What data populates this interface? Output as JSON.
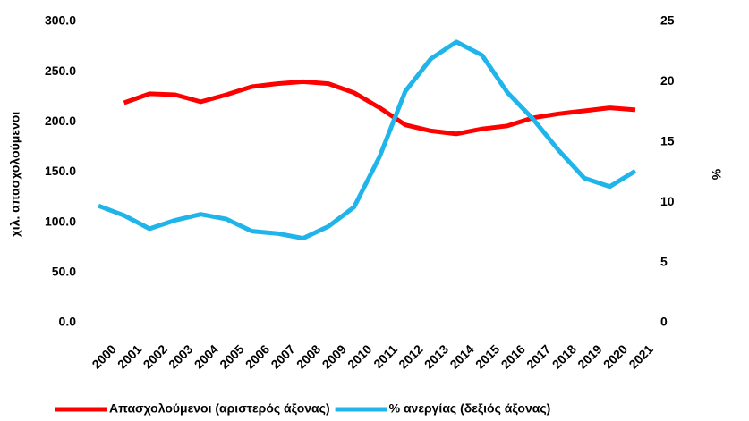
{
  "chart_data": {
    "type": "line",
    "categories": [
      "2000",
      "2001",
      "2002",
      "2003",
      "2004",
      "2005",
      "2006",
      "2007",
      "2008",
      "2009",
      "2010",
      "2011",
      "2012",
      "2013",
      "2014",
      "2015",
      "2016",
      "2017",
      "2018",
      "2019",
      "2020",
      "2021"
    ],
    "series": [
      {
        "name": "Απασχολούμενοι (αριστερός άξονας)",
        "color": "#ff0000",
        "axis": "y",
        "values": [
          null,
          219,
          228,
          227,
          220,
          227,
          235,
          238,
          240,
          238,
          229,
          214,
          197,
          191,
          188,
          193,
          196,
          204,
          208,
          211,
          214,
          212
        ]
      },
      {
        "name": "% ανεργίας (δεξιός άξονας)",
        "color": "#1fb4ea",
        "axis": "y2",
        "values": [
          9.7,
          8.9,
          7.8,
          8.5,
          9.0,
          8.6,
          7.6,
          7.4,
          7.0,
          8.0,
          9.6,
          13.8,
          19.2,
          21.9,
          23.3,
          22.2,
          19.1,
          16.9,
          14.3,
          12.0,
          11.3,
          12.6
        ]
      }
    ],
    "ylabel": "χιλ. απασχολούμενοι",
    "y2label": "%",
    "ylim": [
      0,
      300
    ],
    "yticks": [
      {
        "value": 0,
        "label": "0.0"
      },
      {
        "value": 50,
        "label": "50.0"
      },
      {
        "value": 100,
        "label": "100.0"
      },
      {
        "value": 150,
        "label": "150.0"
      },
      {
        "value": 200,
        "label": "200.0"
      },
      {
        "value": 250,
        "label": "250.0"
      },
      {
        "value": 300,
        "label": "300.0"
      }
    ],
    "y2lim": [
      0,
      25
    ],
    "y2ticks": [
      0,
      5,
      10,
      15,
      20,
      25
    ],
    "grid": false,
    "legend": "bottom"
  }
}
